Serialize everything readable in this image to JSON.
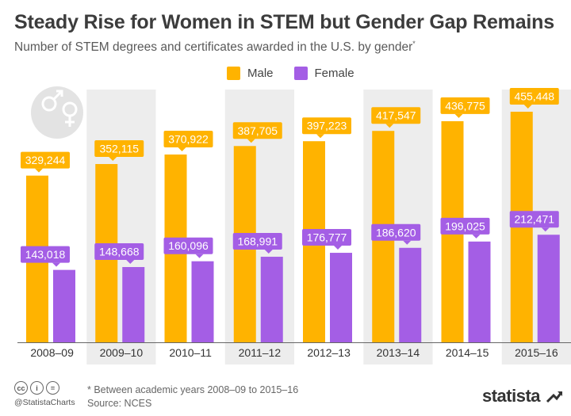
{
  "title": "Steady Rise for Women in STEM but Gender Gap Remains",
  "subtitle": "Number of STEM degrees and certificates awarded in the U.S. by gender",
  "subtitle_mark": "*",
  "footnote": "* Between academic years 2008–09 to 2015–16",
  "source": "Source: NCES",
  "handle": "@StatistaCharts",
  "brand": "statista",
  "icons": {
    "gender": "gender-symbols-icon",
    "license": [
      "cc-icon",
      "by-icon",
      "equal-icon"
    ],
    "brand": "statista-logo-icon"
  },
  "colors": {
    "male": "#FFB300",
    "female": "#A45EE5",
    "band": "#EDEDED",
    "text": "#3c3c3c"
  },
  "chart_data": {
    "type": "bar",
    "categories": [
      "2008–09",
      "2009–10",
      "2010–11",
      "2011–12",
      "2012–13",
      "2013–14",
      "2014–15",
      "2015–16"
    ],
    "series": [
      {
        "name": "Male",
        "values": [
          329244,
          352115,
          370922,
          387705,
          397223,
          417547,
          436775,
          455448
        ]
      },
      {
        "name": "Female",
        "values": [
          143018,
          148668,
          160096,
          168991,
          176777,
          186620,
          199025,
          212471
        ]
      }
    ],
    "legend": "top-center",
    "ylim": [
      0,
      455448
    ],
    "grid": false
  }
}
